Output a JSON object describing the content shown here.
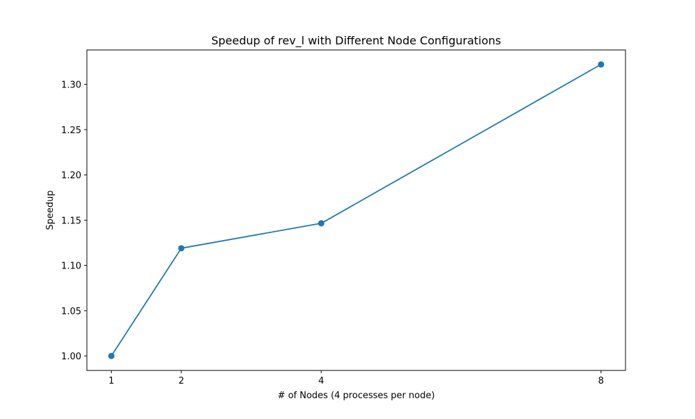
{
  "chart_data": {
    "type": "line",
    "title": "Speedup of rev_l with Different Node Configurations",
    "xlabel": "# of Nodes (4 processes per node)",
    "ylabel": "Speedup",
    "x": [
      1,
      2,
      4,
      8
    ],
    "x_ticks": [
      1,
      2,
      4,
      8
    ],
    "x_tick_labels": [
      "1",
      "2",
      "4",
      "8"
    ],
    "xlim": [
      0.65,
      8.35
    ],
    "ylim": [
      0.984,
      1.338
    ],
    "y_ticks": [
      1.0,
      1.05,
      1.1,
      1.15,
      1.2,
      1.25,
      1.3
    ],
    "y_tick_labels": [
      "1.00",
      "1.05",
      "1.10",
      "1.15",
      "1.20",
      "1.25",
      "1.30"
    ],
    "series": [
      {
        "values": [
          1.0,
          1.119,
          1.1465,
          1.322
        ],
        "color": "#1f77b4",
        "marker": "circle"
      }
    ],
    "grid": false,
    "legend": false
  }
}
